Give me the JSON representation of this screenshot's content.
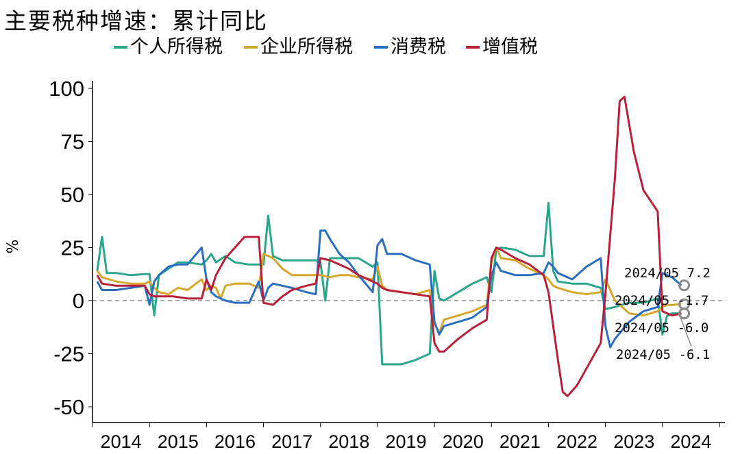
{
  "title": "主要税种增速：累计同比",
  "chart_data": {
    "type": "line",
    "title": "主要税种增速：累计同比",
    "ylabel": "%",
    "xlabel": "",
    "ylim": [
      -50,
      100
    ],
    "yticks": [
      100,
      75,
      50,
      25,
      0,
      -25,
      -50
    ],
    "xticks": [
      "2014",
      "2015",
      "2016",
      "2017",
      "2018",
      "2019",
      "2020",
      "2021",
      "2022",
      "2023",
      "2024"
    ],
    "x_range": [
      "2014-02",
      "2024-05"
    ],
    "zero_line": "dashed",
    "legend_position": "top",
    "series": [
      {
        "name": "个人所得税",
        "color": "#2aa68a",
        "points": [
          [
            "2014-02",
            14
          ],
          [
            "2014-03",
            30
          ],
          [
            "2014-04",
            13
          ],
          [
            "2014-06",
            13
          ],
          [
            "2014-09",
            12
          ],
          [
            "2014-12",
            12.5
          ],
          [
            "2015-01",
            12.5
          ],
          [
            "2015-02",
            -7
          ],
          [
            "2015-03",
            12
          ],
          [
            "2015-05",
            15
          ],
          [
            "2015-07",
            18
          ],
          [
            "2015-09",
            18
          ],
          [
            "2015-12",
            17
          ],
          [
            "2016-01",
            19
          ],
          [
            "2016-02",
            22
          ],
          [
            "2016-03",
            18
          ],
          [
            "2016-05",
            21
          ],
          [
            "2016-07",
            18
          ],
          [
            "2016-10",
            17
          ],
          [
            "2016-12",
            17
          ],
          [
            "2017-01",
            17
          ],
          [
            "2017-02",
            40
          ],
          [
            "2017-03",
            21
          ],
          [
            "2017-05",
            19
          ],
          [
            "2017-07",
            19
          ],
          [
            "2017-10",
            19
          ],
          [
            "2017-12",
            19
          ],
          [
            "2018-01",
            18
          ],
          [
            "2018-02",
            0
          ],
          [
            "2018-03",
            20
          ],
          [
            "2018-06",
            20
          ],
          [
            "2018-09",
            20
          ],
          [
            "2018-12",
            16
          ],
          [
            "2019-01",
            18
          ],
          [
            "2019-02",
            -30
          ],
          [
            "2019-03",
            -30
          ],
          [
            "2019-06",
            -30
          ],
          [
            "2019-09",
            -28
          ],
          [
            "2019-12",
            -25
          ],
          [
            "2020-01",
            14
          ],
          [
            "2020-02",
            1
          ],
          [
            "2020-03",
            0
          ],
          [
            "2020-06",
            4
          ],
          [
            "2020-09",
            8
          ],
          [
            "2020-12",
            11
          ],
          [
            "2021-01",
            4
          ],
          [
            "2021-02",
            24
          ],
          [
            "2021-03",
            25
          ],
          [
            "2021-06",
            24
          ],
          [
            "2021-09",
            21
          ],
          [
            "2021-12",
            21
          ],
          [
            "2022-01",
            46
          ],
          [
            "2022-02",
            14
          ],
          [
            "2022-03",
            9
          ],
          [
            "2022-06",
            8
          ],
          [
            "2022-09",
            8
          ],
          [
            "2022-12",
            6
          ],
          [
            "2023-01",
            -4
          ],
          [
            "2023-03",
            -3
          ],
          [
            "2023-06",
            -1
          ],
          [
            "2023-09",
            -1
          ],
          [
            "2023-12",
            1
          ],
          [
            "2024-01",
            -16
          ],
          [
            "2024-02",
            -7
          ],
          [
            "2024-03",
            -6
          ],
          [
            "2024-05",
            -6.0
          ]
        ]
      },
      {
        "name": "企业所得税",
        "color": "#d4a72c",
        "points": [
          [
            "2014-02",
            14
          ],
          [
            "2014-03",
            11
          ],
          [
            "2014-06",
            9
          ],
          [
            "2014-09",
            8
          ],
          [
            "2014-12",
            8
          ],
          [
            "2015-01",
            9
          ],
          [
            "2015-02",
            6
          ],
          [
            "2015-03",
            4
          ],
          [
            "2015-05",
            3
          ],
          [
            "2015-07",
            6
          ],
          [
            "2015-09",
            5
          ],
          [
            "2015-12",
            10
          ],
          [
            "2016-01",
            5
          ],
          [
            "2016-02",
            7
          ],
          [
            "2016-03",
            6
          ],
          [
            "2016-04",
            1
          ],
          [
            "2016-05",
            7
          ],
          [
            "2016-07",
            8
          ],
          [
            "2016-10",
            8
          ],
          [
            "2016-12",
            6
          ],
          [
            "2017-01",
            22
          ],
          [
            "2017-03",
            20
          ],
          [
            "2017-05",
            15
          ],
          [
            "2017-07",
            12
          ],
          [
            "2017-10",
            12
          ],
          [
            "2017-12",
            12
          ],
          [
            "2018-01",
            12
          ],
          [
            "2018-03",
            11
          ],
          [
            "2018-05",
            12
          ],
          [
            "2018-07",
            12
          ],
          [
            "2018-09",
            11
          ],
          [
            "2018-12",
            10
          ],
          [
            "2019-01",
            16
          ],
          [
            "2019-02",
            7
          ],
          [
            "2019-03",
            5
          ],
          [
            "2019-06",
            4
          ],
          [
            "2019-09",
            3
          ],
          [
            "2019-12",
            5
          ],
          [
            "2020-01",
            -11
          ],
          [
            "2020-02",
            -15
          ],
          [
            "2020-03",
            -9
          ],
          [
            "2020-06",
            -7
          ],
          [
            "2020-09",
            -5
          ],
          [
            "2020-12",
            -2
          ],
          [
            "2021-01",
            18
          ],
          [
            "2021-02",
            25
          ],
          [
            "2021-03",
            20
          ],
          [
            "2021-06",
            19
          ],
          [
            "2021-09",
            15
          ],
          [
            "2021-12",
            12
          ],
          [
            "2022-01",
            10
          ],
          [
            "2022-02",
            7
          ],
          [
            "2022-03",
            6
          ],
          [
            "2022-06",
            4
          ],
          [
            "2022-09",
            3
          ],
          [
            "2022-12",
            4
          ],
          [
            "2023-01",
            10
          ],
          [
            "2023-03",
            0
          ],
          [
            "2023-06",
            -6
          ],
          [
            "2023-09",
            -7
          ],
          [
            "2023-12",
            -5
          ],
          [
            "2024-01",
            -3
          ],
          [
            "2024-02",
            -2
          ],
          [
            "2024-03",
            -2
          ],
          [
            "2024-05",
            -1.7
          ]
        ]
      },
      {
        "name": "消费税",
        "color": "#2a6ebf",
        "points": [
          [
            "2014-02",
            9
          ],
          [
            "2014-03",
            5
          ],
          [
            "2014-06",
            5
          ],
          [
            "2014-09",
            6
          ],
          [
            "2014-12",
            7
          ],
          [
            "2015-01",
            -2
          ],
          [
            "2015-02",
            9
          ],
          [
            "2015-03",
            12
          ],
          [
            "2015-05",
            16
          ],
          [
            "2015-07",
            17
          ],
          [
            "2015-09",
            17
          ],
          [
            "2015-12",
            25
          ],
          [
            "2016-01",
            10
          ],
          [
            "2016-02",
            4
          ],
          [
            "2016-03",
            2
          ],
          [
            "2016-05",
            0
          ],
          [
            "2016-07",
            -1
          ],
          [
            "2016-10",
            -1
          ],
          [
            "2016-12",
            9
          ],
          [
            "2017-01",
            0
          ],
          [
            "2017-02",
            6
          ],
          [
            "2017-03",
            8
          ],
          [
            "2017-05",
            7
          ],
          [
            "2017-07",
            6
          ],
          [
            "2017-10",
            4
          ],
          [
            "2017-12",
            3
          ],
          [
            "2018-01",
            33
          ],
          [
            "2018-02",
            33
          ],
          [
            "2018-03",
            29
          ],
          [
            "2018-05",
            22
          ],
          [
            "2018-07",
            18
          ],
          [
            "2018-09",
            12
          ],
          [
            "2018-12",
            4
          ],
          [
            "2019-01",
            26
          ],
          [
            "2019-02",
            29
          ],
          [
            "2019-03",
            22
          ],
          [
            "2019-06",
            22
          ],
          [
            "2019-09",
            19
          ],
          [
            "2019-12",
            17
          ],
          [
            "2020-01",
            -10
          ],
          [
            "2020-02",
            -16
          ],
          [
            "2020-03",
            -12
          ],
          [
            "2020-06",
            -10
          ],
          [
            "2020-09",
            -8
          ],
          [
            "2020-12",
            -3
          ],
          [
            "2021-01",
            12
          ],
          [
            "2021-02",
            18
          ],
          [
            "2021-03",
            14
          ],
          [
            "2021-06",
            12
          ],
          [
            "2021-09",
            12
          ],
          [
            "2021-12",
            13
          ],
          [
            "2022-01",
            18
          ],
          [
            "2022-02",
            16
          ],
          [
            "2022-03",
            13
          ],
          [
            "2022-06",
            10
          ],
          [
            "2022-09",
            16
          ],
          [
            "2022-12",
            20
          ],
          [
            "2023-01",
            -12
          ],
          [
            "2023-02",
            -22
          ],
          [
            "2023-03",
            -18
          ],
          [
            "2023-06",
            -10
          ],
          [
            "2023-09",
            -5
          ],
          [
            "2023-12",
            -3
          ],
          [
            "2024-01",
            13
          ],
          [
            "2024-03",
            11
          ],
          [
            "2024-05",
            7.2
          ]
        ]
      },
      {
        "name": "增值税",
        "color": "#b81f3a",
        "points": [
          [
            "2014-02",
            12
          ],
          [
            "2014-03",
            8
          ],
          [
            "2014-06",
            7
          ],
          [
            "2014-09",
            7
          ],
          [
            "2014-12",
            7
          ],
          [
            "2015-01",
            3
          ],
          [
            "2015-02",
            2
          ],
          [
            "2015-03",
            2
          ],
          [
            "2015-06",
            2
          ],
          [
            "2015-09",
            1
          ],
          [
            "2015-12",
            1
          ],
          [
            "2016-01",
            10
          ],
          [
            "2016-02",
            5
          ],
          [
            "2016-03",
            12
          ],
          [
            "2016-05",
            20
          ],
          [
            "2016-07",
            25
          ],
          [
            "2016-09",
            30
          ],
          [
            "2016-12",
            30
          ],
          [
            "2017-01",
            -1
          ],
          [
            "2017-03",
            -2
          ],
          [
            "2017-05",
            2
          ],
          [
            "2017-07",
            5
          ],
          [
            "2017-10",
            7
          ],
          [
            "2017-12",
            8
          ],
          [
            "2018-01",
            20
          ],
          [
            "2018-03",
            19
          ],
          [
            "2018-05",
            17
          ],
          [
            "2018-07",
            15
          ],
          [
            "2018-09",
            12
          ],
          [
            "2018-12",
            9
          ],
          [
            "2019-01",
            8
          ],
          [
            "2019-02",
            6
          ],
          [
            "2019-03",
            5
          ],
          [
            "2019-06",
            4
          ],
          [
            "2019-09",
            3
          ],
          [
            "2019-12",
            2
          ],
          [
            "2020-01",
            -20
          ],
          [
            "2020-02",
            -24
          ],
          [
            "2020-03",
            -24
          ],
          [
            "2020-06",
            -18
          ],
          [
            "2020-09",
            -13
          ],
          [
            "2020-12",
            -9
          ],
          [
            "2021-01",
            20
          ],
          [
            "2021-02",
            25
          ],
          [
            "2021-03",
            24
          ],
          [
            "2021-06",
            20
          ],
          [
            "2021-09",
            17
          ],
          [
            "2021-12",
            12
          ],
          [
            "2022-01",
            4
          ],
          [
            "2022-03",
            -28
          ],
          [
            "2022-04",
            -43
          ],
          [
            "2022-05",
            -45
          ],
          [
            "2022-07",
            -40
          ],
          [
            "2022-09",
            -32
          ],
          [
            "2022-12",
            -20
          ],
          [
            "2023-01",
            3
          ],
          [
            "2023-03",
            58
          ],
          [
            "2023-04",
            94
          ],
          [
            "2023-05",
            96
          ],
          [
            "2023-07",
            70
          ],
          [
            "2023-09",
            52
          ],
          [
            "2023-12",
            42
          ],
          [
            "2024-01",
            -5
          ],
          [
            "2024-03",
            -7
          ],
          [
            "2024-05",
            -6.1
          ]
        ]
      }
    ],
    "annotations": [
      {
        "text": "2024/05  7.2",
        "series": "消费税",
        "x": "2024-05",
        "y": 7.2
      },
      {
        "text": "2024/05 -1.7",
        "series": "企业所得税",
        "x": "2024-05",
        "y": -1.7
      },
      {
        "text": "2024/05 -6.0",
        "series": "个人所得税",
        "x": "2024-05",
        "y": -6.0
      },
      {
        "text": "2024/05 -6.1",
        "series": "增值税",
        "x": "2024-05",
        "y": -6.1
      }
    ]
  }
}
